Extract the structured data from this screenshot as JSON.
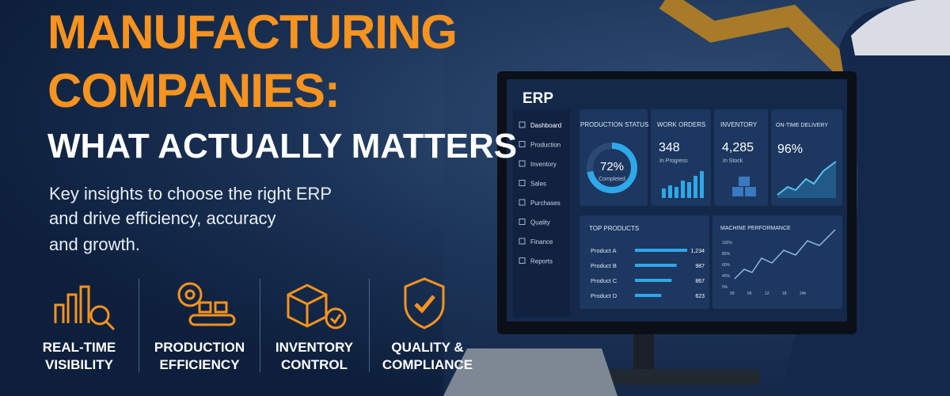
{
  "headline": {
    "line1": "MANUFACTURING",
    "line2": "COMPANIES:",
    "line3": "WHAT ACTUALLY MATTERS"
  },
  "subtitle": [
    "Key insights to choose the right ERP",
    "and drive efficiency, accuracy",
    "and growth."
  ],
  "features": [
    {
      "line1": "REAL-TIME",
      "line2": "VISIBILITY"
    },
    {
      "line1": "PRODUCTION",
      "line2": "EFFICIENCY"
    },
    {
      "line1": "INVENTORY",
      "line2": "CONTROL"
    },
    {
      "line1": "QUALITY &",
      "line2": "COMPLIANCE"
    }
  ],
  "dashboard": {
    "brand": "ERP",
    "nav": [
      "Dashboard",
      "Production",
      "Inventory",
      "Sales",
      "Purchases",
      "Quality",
      "Finance",
      "Reports"
    ],
    "cards": [
      {
        "title": "PRODUCTION STATUS",
        "value": "72%",
        "caption": "Completed"
      },
      {
        "title": "WORK ORDERS",
        "value": "348",
        "caption": "In Progress"
      },
      {
        "title": "INVENTORY",
        "value": "4,285",
        "caption": "In Stock"
      },
      {
        "title": "ON-TIME DELIVERY",
        "value": "96%"
      }
    ],
    "top_products": {
      "title": "TOP PRODUCTS",
      "categories": [
        "Product A",
        "Product B",
        "Product C",
        "Product D"
      ],
      "values": [
        1234,
        987,
        867,
        623
      ],
      "value_labels": [
        "1,234",
        "987",
        "867",
        "623"
      ]
    },
    "machine_performance": {
      "title": "MACHINE PERFORMANCE",
      "yticks": [
        "100%",
        "80%",
        "60%",
        "40%",
        "0%"
      ],
      "xticks": [
        "00",
        "06",
        "12",
        "18",
        "24h"
      ]
    }
  }
}
